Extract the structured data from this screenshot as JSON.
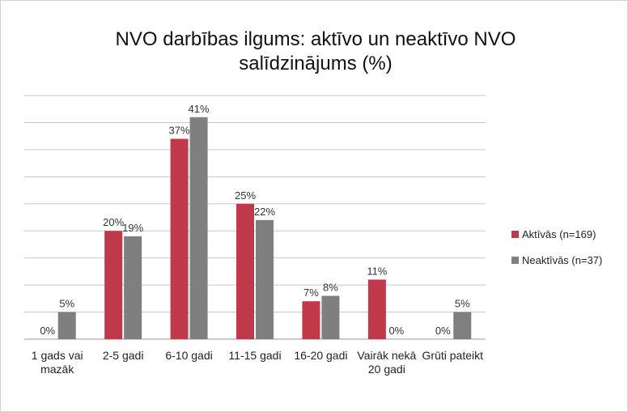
{
  "chart_data": {
    "type": "bar",
    "title": [
      "NVO darbības ilgums: aktīvo un neaktīvo NVO",
      "salīdzinājums (%)"
    ],
    "categories": [
      "1 gads vai mazāk",
      "2-5 gadi",
      "6-10 gadi",
      "11-15 gadi",
      "16-20 gadi",
      "Vairāk nekā 20 gadi",
      "Grūti pateikt"
    ],
    "series": [
      {
        "name": "Aktīvās (n=169)",
        "color": "#c0394b",
        "values": [
          0,
          20,
          37,
          25,
          7,
          11,
          0
        ],
        "value_labels": [
          "0%",
          "20%",
          "37%",
          "25%",
          "7%",
          "11%",
          "0%"
        ]
      },
      {
        "name": "Neaktīvās (n=37)",
        "color": "#7f7f7f",
        "values": [
          5,
          19,
          41,
          22,
          8,
          0,
          5
        ],
        "value_labels": [
          "5%",
          "19%",
          "41%",
          "22%",
          "8%",
          "0%",
          "5%"
        ]
      }
    ],
    "ylim": [
      0,
      45
    ],
    "yticks": [
      0,
      5,
      10,
      15,
      20,
      25,
      30,
      35,
      40,
      45
    ],
    "grid": true,
    "legend": "right"
  }
}
